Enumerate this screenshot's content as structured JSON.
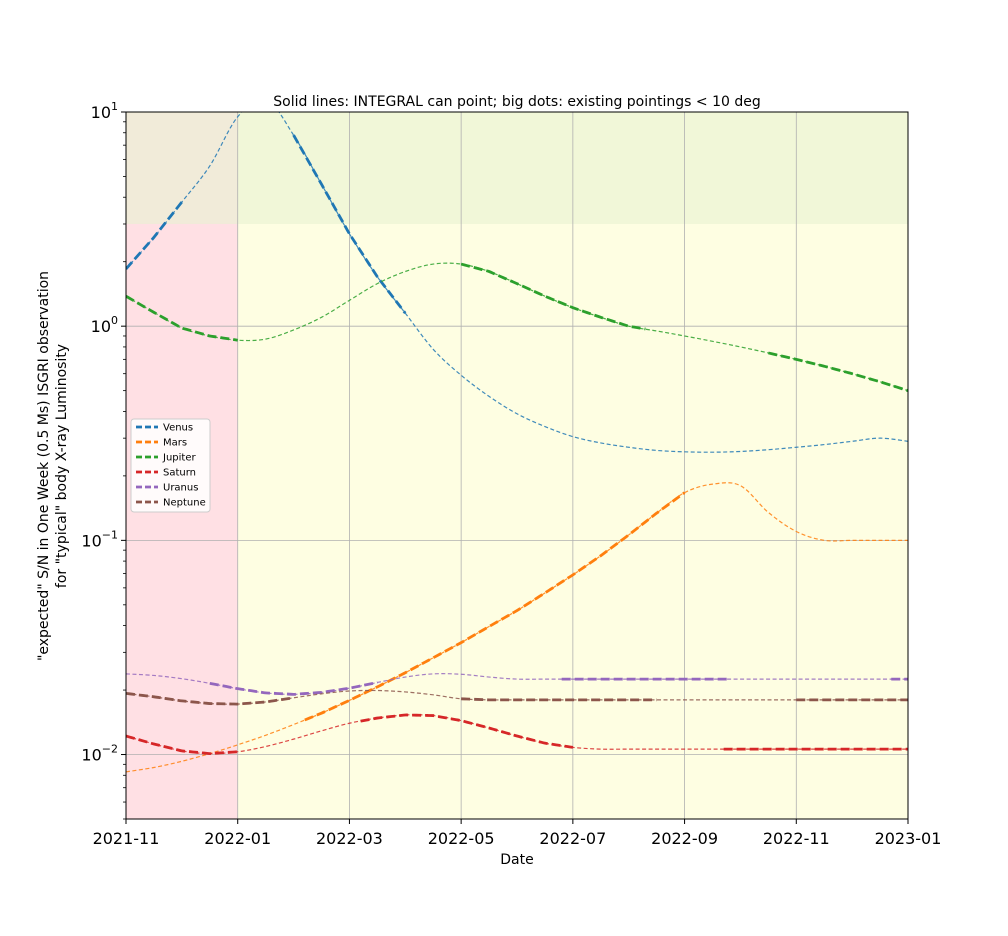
{
  "chart_data": {
    "type": "line",
    "title": "Solid lines: INTEGRAL can point; big dots: existing pointings < 10 deg",
    "xlabel": "Date",
    "ylabel": [
      "\"expected\" S/N in One Week (0.5 Ms) ISGRI observation",
      "for \"typical\" body X-ray Luminosity"
    ],
    "y_scale": "log",
    "ylim": [
      0.005,
      10
    ],
    "xlim": [
      "2021-11",
      "2023-01"
    ],
    "x_ticks": [
      "2021-11",
      "2022-01",
      "2022-03",
      "2022-05",
      "2022-07",
      "2022-09",
      "2022-11",
      "2023-01"
    ],
    "y_ticks": [
      {
        "value": 0.01,
        "base": "10",
        "exp": "−2"
      },
      {
        "value": 0.1,
        "base": "10",
        "exp": "−1"
      },
      {
        "value": 1,
        "base": "10",
        "exp": "0"
      },
      {
        "value": 10,
        "base": "10",
        "exp": "1"
      }
    ],
    "grid": true,
    "legend_position": "center-left",
    "background_regions": [
      {
        "x_from": "2021-11",
        "x_to": "2022-01",
        "y_from": 0.005,
        "y_to": 10,
        "color": "#ffe0e4"
      },
      {
        "x_from": "2022-01",
        "x_to": "2023-01",
        "y_from": 0.005,
        "y_to": 10,
        "color": "#fefee2"
      },
      {
        "x_from": "2021-11",
        "x_to": "2023-01",
        "y_from": 3,
        "y_to": 10,
        "color": "#e8f2d2",
        "opacity": 0.6
      }
    ],
    "x_months": [
      0,
      0.5,
      1,
      1.5,
      2,
      2.5,
      3,
      3.5,
      4,
      4.5,
      5,
      5.5,
      6,
      6.5,
      7,
      7.5,
      8,
      8.5,
      9,
      9.5,
      10,
      10.5,
      11,
      11.5,
      12,
      12.5,
      13,
      13.5,
      14
    ],
    "series": [
      {
        "name": "Venus",
        "color": "#1f77b4",
        "values": [
          1.85,
          2.6,
          3.8,
          5.6,
          9.5,
          11.5,
          7.8,
          4.6,
          2.7,
          1.7,
          1.15,
          0.78,
          0.59,
          0.47,
          0.39,
          0.34,
          0.305,
          0.285,
          0.272,
          0.263,
          0.259,
          0.258,
          0.26,
          0.265,
          0.272,
          0.28,
          0.29,
          0.3,
          0.29
        ],
        "solid_ranges": [
          [
            0,
            1
          ],
          [
            3,
            5
          ]
        ]
      },
      {
        "name": "Mars",
        "color": "#ff7f0e",
        "values": [
          0.0083,
          0.0087,
          0.0093,
          0.0101,
          0.0111,
          0.0123,
          0.0138,
          0.0156,
          0.0179,
          0.0207,
          0.0241,
          0.0283,
          0.0333,
          0.0396,
          0.047,
          0.0568,
          0.069,
          0.0848,
          0.106,
          0.134,
          0.167,
          0.183,
          0.18,
          0.135,
          0.11,
          0.1,
          0.1,
          0.1,
          0.1
        ],
        "solid_ranges": [
          [
            3.2,
            10
          ]
        ]
      },
      {
        "name": "Jupiter",
        "color": "#2ca02c",
        "values": [
          1.38,
          1.16,
          0.98,
          0.9,
          0.86,
          0.87,
          0.96,
          1.1,
          1.32,
          1.58,
          1.8,
          1.95,
          1.95,
          1.8,
          1.58,
          1.38,
          1.22,
          1.1,
          1.0,
          0.95,
          0.9,
          0.85,
          0.8,
          0.75,
          0.7,
          0.65,
          0.6,
          0.55,
          0.5
        ],
        "solid_ranges": [
          [
            0,
            2
          ],
          [
            6,
            9.3
          ],
          [
            11.5,
            14
          ]
        ]
      },
      {
        "name": "Saturn",
        "color": "#d62728",
        "values": [
          0.0122,
          0.0112,
          0.0104,
          0.0101,
          0.0103,
          0.0109,
          0.0118,
          0.0129,
          0.014,
          0.0148,
          0.0153,
          0.0152,
          0.0144,
          0.0133,
          0.0122,
          0.0113,
          0.0108,
          0.0106,
          0.0106,
          0.0106,
          0.0106,
          0.0106,
          0.0106,
          0.0106,
          0.0106,
          0.0106,
          0.0106,
          0.0106,
          0.0106
        ],
        "solid_ranges": [
          [
            0,
            2
          ],
          [
            4.2,
            8
          ],
          [
            10.7,
            14
          ]
        ]
      },
      {
        "name": "Uranus",
        "color": "#9467bd",
        "values": [
          0.0238,
          0.0234,
          0.0226,
          0.0215,
          0.0203,
          0.0194,
          0.0191,
          0.0195,
          0.0204,
          0.0217,
          0.023,
          0.0238,
          0.0237,
          0.023,
          0.0225,
          0.0225,
          0.0225,
          0.0225,
          0.0225,
          0.0225,
          0.0225,
          0.0225,
          0.0225,
          0.0225,
          0.0225,
          0.0225,
          0.0225,
          0.0225,
          0.0225
        ],
        "solid_ranges": [
          [
            1.5,
            4.5
          ],
          [
            7.8,
            10.8
          ],
          [
            13.7,
            14
          ]
        ]
      },
      {
        "name": "Neptune",
        "color": "#8c564b",
        "values": [
          0.0193,
          0.0186,
          0.0178,
          0.0173,
          0.0172,
          0.0176,
          0.0184,
          0.0192,
          0.0198,
          0.0199,
          0.0196,
          0.019,
          0.0182,
          0.018,
          0.018,
          0.018,
          0.018,
          0.018,
          0.018,
          0.018,
          0.018,
          0.018,
          0.018,
          0.018,
          0.018,
          0.018,
          0.018,
          0.018,
          0.018
        ],
        "solid_ranges": [
          [
            0,
            3
          ],
          [
            6,
            9.5
          ],
          [
            12,
            14
          ]
        ]
      }
    ]
  }
}
